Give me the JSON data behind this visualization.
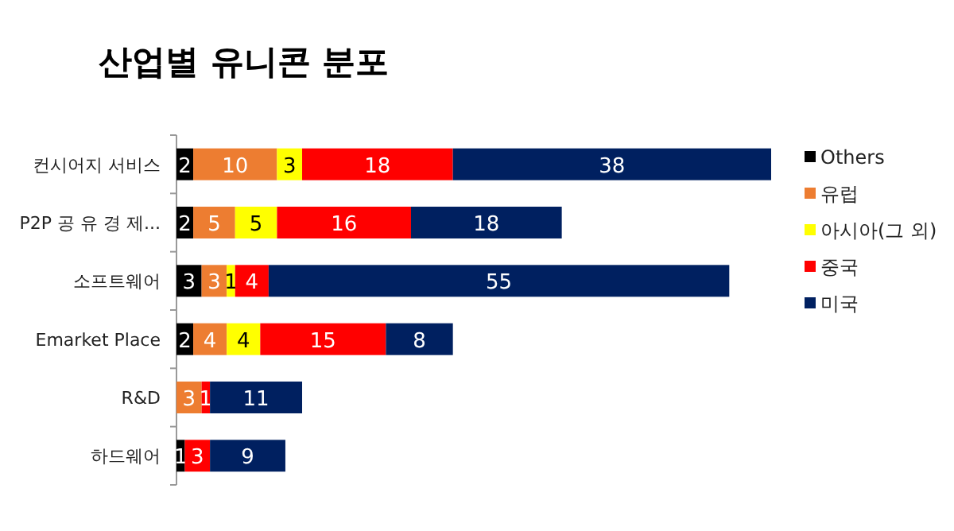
{
  "chart_data": {
    "type": "bar",
    "orientation": "horizontal",
    "stacked": true,
    "title": "산업별 유니콘 분포",
    "data_labels": true,
    "legend": "right",
    "categories": [
      "컨시어지 서비스",
      "P2P  공 유 경 제...",
      "소프트웨어",
      "Emarket Place",
      "R&D",
      "하드웨어"
    ],
    "series": [
      {
        "name": "Others",
        "color": "#000000",
        "values": [
          2,
          2,
          3,
          2,
          null,
          1
        ]
      },
      {
        "name": "유럽",
        "color": "#ed7d31",
        "values": [
          10,
          5,
          3,
          4,
          3,
          null
        ]
      },
      {
        "name": "아시아(그 외)",
        "color": "#ffff00",
        "values": [
          3,
          5,
          1,
          4,
          null,
          null
        ]
      },
      {
        "name": "중국",
        "color": "#ff0000",
        "values": [
          18,
          16,
          4,
          15,
          1,
          3
        ]
      },
      {
        "name": "미국",
        "color": "#002060",
        "values": [
          38,
          18,
          55,
          8,
          11,
          9
        ]
      }
    ]
  }
}
